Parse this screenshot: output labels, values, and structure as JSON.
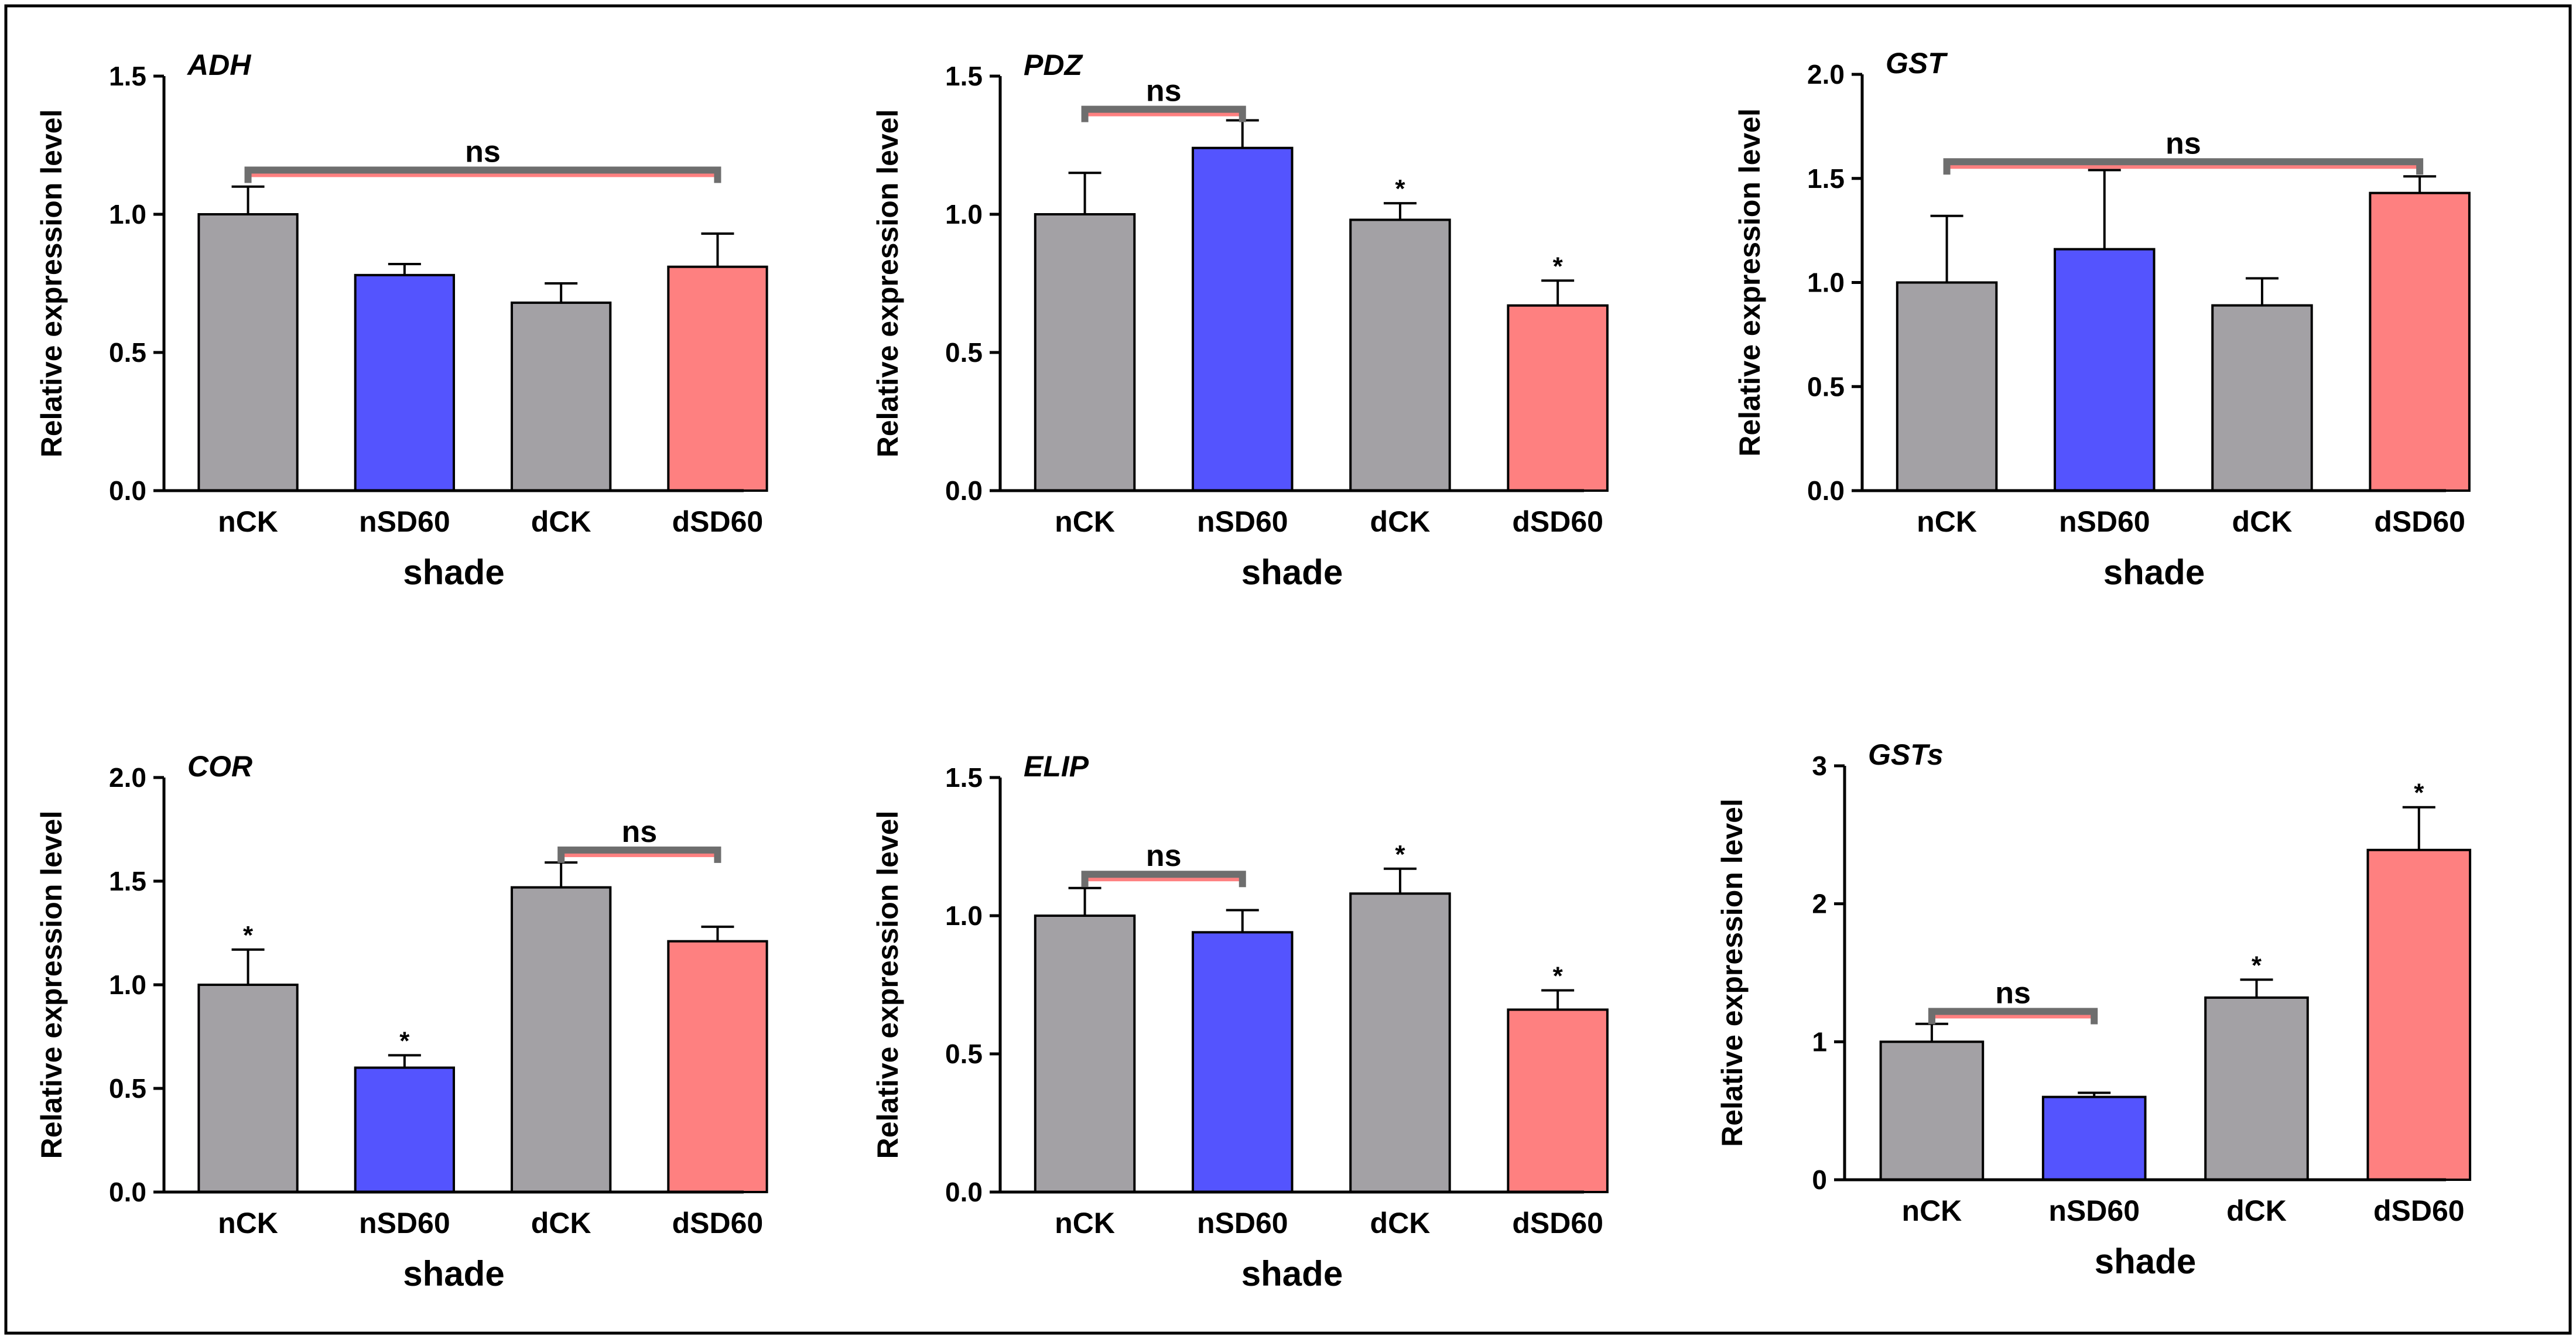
{
  "colors": {
    "nCK": "#a3a1a5",
    "nSD60": "#5454fe",
    "dCK": "#a3a1a5",
    "dSD60": "#fe8080",
    "ns_bar_top": "#6e6e6e",
    "ns_bar_bottom": "#fe8080",
    "axis": "#000000",
    "frame": "#000000"
  },
  "chart_data": [
    {
      "type": "bar",
      "title": "ADH",
      "xlabel": "shade",
      "ylabel": "Relative expression level",
      "categories": [
        "nCK",
        "nSD60",
        "dCK",
        "dSD60"
      ],
      "values": [
        1.0,
        0.78,
        0.68,
        0.81
      ],
      "errors": [
        0.1,
        0.04,
        0.07,
        0.12
      ],
      "ylim": [
        0,
        1.5
      ],
      "yticks": [
        "0.0",
        "0.5",
        "1.0",
        "1.5"
      ],
      "ytick_values": [
        0,
        0.5,
        1.0,
        1.5
      ],
      "stars": [
        "",
        "",
        "",
        ""
      ],
      "ns": {
        "from": 0,
        "to": 3,
        "level": 1.16,
        "label": "ns"
      }
    },
    {
      "type": "bar",
      "title": "PDZ",
      "xlabel": "shade",
      "ylabel": "Relative expression level",
      "categories": [
        "nCK",
        "nSD60",
        "dCK",
        "dSD60"
      ],
      "values": [
        1.0,
        1.24,
        0.98,
        0.67
      ],
      "errors": [
        0.15,
        0.1,
        0.06,
        0.09
      ],
      "ylim": [
        0,
        1.5
      ],
      "yticks": [
        "0.0",
        "0.5",
        "1.0",
        "1.5"
      ],
      "ytick_values": [
        0,
        0.5,
        1.0,
        1.5
      ],
      "stars": [
        "",
        "",
        "*",
        "*"
      ],
      "ns": {
        "from": 0,
        "to": 1,
        "level": 1.38,
        "label": "ns"
      }
    },
    {
      "type": "bar",
      "title": "GST",
      "xlabel": "shade",
      "ylabel": "Relative expression level",
      "categories": [
        "nCK",
        "nSD60",
        "dCK",
        "dSD60"
      ],
      "values": [
        1.0,
        1.16,
        0.89,
        1.43
      ],
      "errors": [
        0.32,
        0.38,
        0.13,
        0.08
      ],
      "ylim": [
        0,
        2.0
      ],
      "yticks": [
        "0.0",
        "0.5",
        "1.0",
        "1.5",
        "2.0"
      ],
      "ytick_values": [
        0,
        0.5,
        1.0,
        1.5,
        2.0
      ],
      "stars": [
        "",
        "",
        "",
        ""
      ],
      "ns": {
        "from": 0,
        "to": 3,
        "level": 1.58,
        "label": "ns"
      }
    },
    {
      "type": "bar",
      "title": "COR",
      "xlabel": "shade",
      "ylabel": "Relative expression level",
      "categories": [
        "nCK",
        "nSD60",
        "dCK",
        "dSD60"
      ],
      "values": [
        1.0,
        0.6,
        1.47,
        1.21
      ],
      "errors": [
        0.17,
        0.06,
        0.12,
        0.07
      ],
      "ylim": [
        0,
        2.0
      ],
      "yticks": [
        "0.0",
        "0.5",
        "1.0",
        "1.5",
        "2.0"
      ],
      "ytick_values": [
        0,
        0.5,
        1.0,
        1.5,
        2.0
      ],
      "stars": [
        "*",
        "*",
        "",
        ""
      ],
      "ns": {
        "from": 2,
        "to": 3,
        "level": 1.65,
        "label": "ns"
      }
    },
    {
      "type": "bar",
      "title": "ELIP",
      "xlabel": "shade",
      "ylabel": "Relative expression level",
      "categories": [
        "nCK",
        "nSD60",
        "dCK",
        "dSD60"
      ],
      "values": [
        1.0,
        0.94,
        1.08,
        0.66
      ],
      "errors": [
        0.1,
        0.08,
        0.09,
        0.07
      ],
      "ylim": [
        0,
        1.5
      ],
      "yticks": [
        "0.0",
        "0.5",
        "1.0",
        "1.5"
      ],
      "ytick_values": [
        0,
        0.5,
        1.0,
        1.5
      ],
      "stars": [
        "",
        "",
        "*",
        "*"
      ],
      "ns": {
        "from": 0,
        "to": 1,
        "level": 1.15,
        "label": "ns"
      }
    },
    {
      "type": "bar",
      "title": "GSTs",
      "xlabel": "shade",
      "ylabel": "Relative expression level",
      "categories": [
        "nCK",
        "nSD60",
        "dCK",
        "dSD60"
      ],
      "values": [
        1.0,
        0.6,
        1.32,
        2.39
      ],
      "errors": [
        0.13,
        0.03,
        0.13,
        0.31
      ],
      "ylim": [
        0,
        3
      ],
      "yticks": [
        "0",
        "1",
        "2",
        "3"
      ],
      "ytick_values": [
        0,
        1,
        2,
        3
      ],
      "stars": [
        "",
        "",
        "*",
        "*"
      ],
      "ns": {
        "from": 0,
        "to": 1,
        "level": 1.22,
        "label": "ns"
      }
    }
  ]
}
